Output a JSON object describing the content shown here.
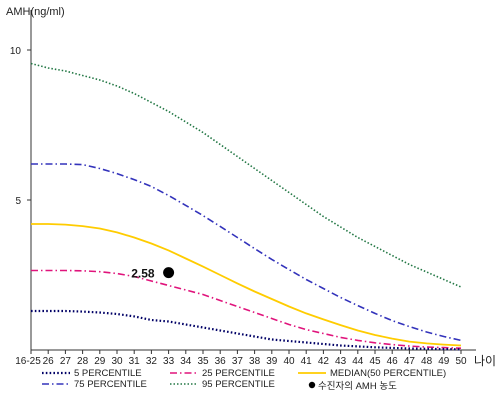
{
  "chart_data": {
    "type": "line",
    "ylabel": "AMH(ng/ml)",
    "xlabel": "나이",
    "ylim": [
      0,
      11
    ],
    "yticks": [
      5,
      10
    ],
    "categories": [
      "16-25",
      "26",
      "27",
      "28",
      "29",
      "30",
      "31",
      "32",
      "33",
      "34",
      "35",
      "36",
      "37",
      "38",
      "39",
      "40",
      "41",
      "42",
      "43",
      "44",
      "45",
      "46",
      "47",
      "48",
      "49",
      "50"
    ],
    "series": [
      {
        "name": "5 PERCENTILE",
        "color": "#000066",
        "dash": "1.6,2.2",
        "width": 2.2,
        "values": [
          1.3,
          1.3,
          1.3,
          1.28,
          1.25,
          1.2,
          1.12,
          1.0,
          0.95,
          0.85,
          0.75,
          0.65,
          0.55,
          0.45,
          0.35,
          0.3,
          0.25,
          0.2,
          0.15,
          0.12,
          0.09,
          0.07,
          0.05,
          0.04,
          0.03,
          0.02
        ]
      },
      {
        "name": "25 PERCENTILE",
        "color": "#e0147c",
        "dash": "7,3,1.5,3",
        "width": 1.6,
        "values": [
          2.65,
          2.65,
          2.65,
          2.64,
          2.61,
          2.55,
          2.45,
          2.3,
          2.15,
          2.0,
          1.85,
          1.65,
          1.45,
          1.25,
          1.05,
          0.85,
          0.68,
          0.55,
          0.42,
          0.32,
          0.24,
          0.18,
          0.13,
          0.1,
          0.08,
          0.06
        ]
      },
      {
        "name": "MEDIAN(50 PERCENTILE)",
        "color": "#ffcc00",
        "dash": "",
        "width": 1.8,
        "values": [
          4.2,
          4.2,
          4.18,
          4.13,
          4.05,
          3.92,
          3.75,
          3.55,
          3.32,
          3.05,
          2.78,
          2.5,
          2.22,
          1.95,
          1.7,
          1.45,
          1.22,
          1.02,
          0.83,
          0.65,
          0.5,
          0.38,
          0.28,
          0.22,
          0.18,
          0.15
        ]
      },
      {
        "name": "75 PERCENTILE",
        "color": "#3333bb",
        "dash": "7,3,1.5,3",
        "width": 1.6,
        "values": [
          6.2,
          6.2,
          6.2,
          6.18,
          6.05,
          5.88,
          5.68,
          5.45,
          5.15,
          4.82,
          4.48,
          4.12,
          3.75,
          3.38,
          3.02,
          2.68,
          2.35,
          2.05,
          1.75,
          1.48,
          1.22,
          0.98,
          0.78,
          0.6,
          0.45,
          0.32
        ]
      },
      {
        "name": "95 PERCENTILE",
        "color": "#227744",
        "dash": "1.5,2",
        "width": 1.6,
        "values": [
          9.55,
          9.4,
          9.3,
          9.15,
          9.0,
          8.8,
          8.55,
          8.25,
          7.95,
          7.6,
          7.25,
          6.85,
          6.45,
          6.05,
          5.65,
          5.25,
          4.85,
          4.45,
          4.1,
          3.75,
          3.45,
          3.15,
          2.85,
          2.6,
          2.35,
          2.1
        ]
      }
    ],
    "point": {
      "name": "수진자의 AMH 농도",
      "category": "33",
      "value": 2.58,
      "label": "2.58"
    },
    "legend_placement": "bottom",
    "grid": false
  }
}
